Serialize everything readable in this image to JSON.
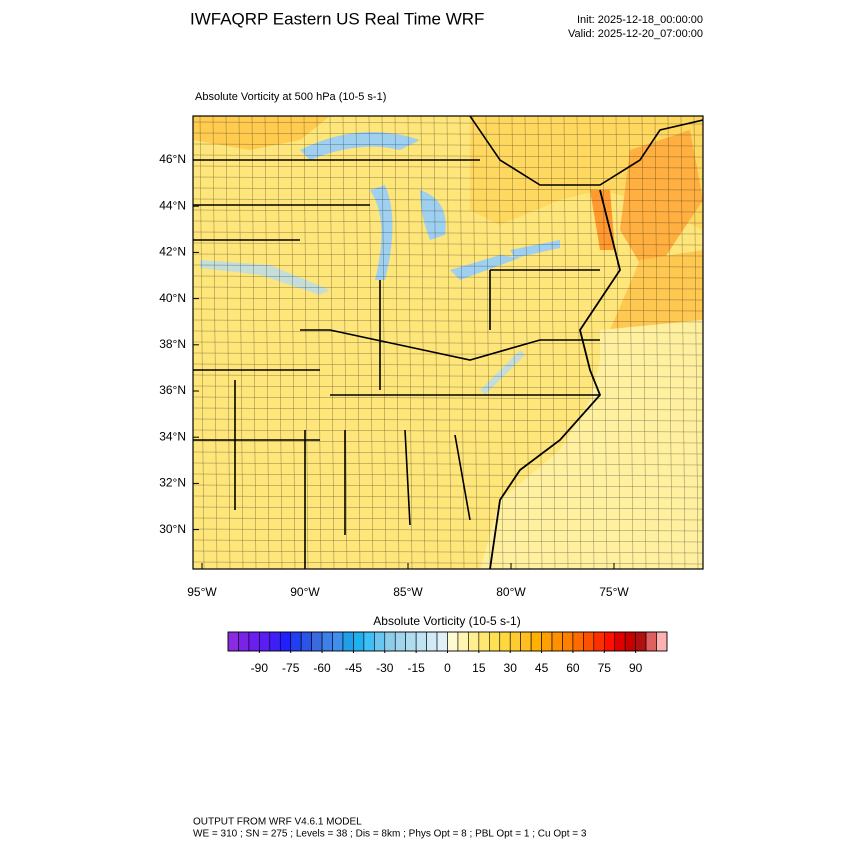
{
  "header": {
    "title": "IWFAQRP Eastern US Real Time WRF",
    "init": "Init: 2025-12-18_00:00:00",
    "valid": "Valid: 2025-12-20_07:00:00"
  },
  "plot": {
    "title": "Absolute Vorticity at 500 hPa   (10-5 s-1)",
    "lat_ticks": [
      {
        "value": 46,
        "label": "46°N"
      },
      {
        "value": 44,
        "label": "44°N"
      },
      {
        "value": 42,
        "label": "42°N"
      },
      {
        "value": 40,
        "label": "40°N"
      },
      {
        "value": 38,
        "label": "38°N"
      },
      {
        "value": 36,
        "label": "36°N"
      },
      {
        "value": 34,
        "label": "34°N"
      },
      {
        "value": 32,
        "label": "32°N"
      },
      {
        "value": 30,
        "label": "30°N"
      }
    ],
    "lon_ticks": [
      {
        "value": -95,
        "label": "95°W"
      },
      {
        "value": -90,
        "label": "90°W"
      },
      {
        "value": -85,
        "label": "85°W"
      },
      {
        "value": -80,
        "label": "80°W"
      },
      {
        "value": -75,
        "label": "75°W"
      }
    ]
  },
  "colorbar": {
    "title": "Absolute Vorticity  (10-5 s-1)",
    "lim": [
      -105,
      105
    ],
    "ticks": [
      -90,
      -75,
      -60,
      -45,
      -30,
      -15,
      0,
      15,
      30,
      45,
      60,
      75,
      90
    ],
    "colors": [
      "#8a2be2",
      "#7b22e8",
      "#6a1ef0",
      "#5a1ef5",
      "#3f1ff8",
      "#2020ff",
      "#1f3ff0",
      "#2a55e8",
      "#3a6ae0",
      "#3f7fe8",
      "#3f90ee",
      "#1f9fe8",
      "#1fb0f0",
      "#3fbff5",
      "#6ac6f0",
      "#8ccdea",
      "#a0d5ee",
      "#b0dcf0",
      "#c0e3f3",
      "#d0eaf6",
      "#e0f0f8",
      "#fffbd0",
      "#fff5b0",
      "#ffef90",
      "#ffe870",
      "#ffe050",
      "#ffd840",
      "#ffcc30",
      "#ffbf20",
      "#ffb000",
      "#ffa000",
      "#ff9000",
      "#ff8000",
      "#ff6a00",
      "#ff5000",
      "#ff3000",
      "#ff1000",
      "#e00000",
      "#c80000",
      "#b01010",
      "#e06060",
      "#ffb0b0"
    ]
  },
  "footer": {
    "line1": "OUTPUT FROM WRF V4.6.1 MODEL",
    "line2": "WE = 310 ; SN = 275 ; Levels = 38 ; Dis = 8km ; Phys Opt = 8 ; PBL Opt = 1 ; Cu Opt = 3"
  }
}
